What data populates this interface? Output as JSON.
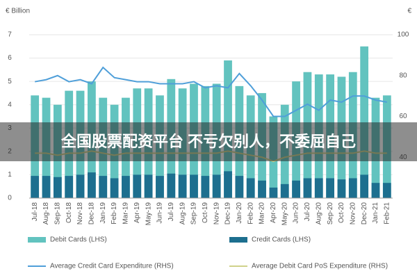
{
  "chart_data": {
    "type": "bar_line",
    "y_label": "€ Billion",
    "y2_label": "€",
    "banner": "全国股票配资平台 不亏欠别人，不委屈自己",
    "categories": [
      "Jul-18",
      "Aug-18",
      "Sep-18",
      "Oct-18",
      "Nov-18",
      "Dec-18",
      "Jan-19",
      "Feb-19",
      "Mar-19",
      "Apr-19",
      "May-19",
      "Jun-19",
      "Jul-19",
      "Aug-19",
      "Sep-19",
      "Oct-19",
      "Nov-19",
      "Dec-19",
      "Jan-20",
      "Feb-20",
      "Mar-20",
      "Apr-20",
      "May-20",
      "Jun-20",
      "Jul-20",
      "Aug-20",
      "Sep-20",
      "Oct-20",
      "Nov-20",
      "Dec-20",
      "Jan-21",
      "Feb-21"
    ],
    "series": [
      {
        "name": "Debit Cards (LHS)",
        "kind": "bar",
        "color": "#62c3bf",
        "values": [
          4.4,
          4.3,
          4.0,
          4.6,
          4.6,
          5.0,
          4.3,
          4.0,
          4.3,
          4.7,
          4.7,
          4.4,
          5.1,
          4.7,
          4.9,
          4.8,
          4.9,
          5.9,
          4.8,
          4.4,
          4.5,
          3.5,
          4.0,
          5.0,
          5.4,
          5.3,
          5.3,
          5.2,
          5.4,
          6.5,
          4.3,
          4.4
        ]
      },
      {
        "name": "Credit Cards (LHS)",
        "kind": "bar",
        "color": "#1d6f8f",
        "values": [
          0.95,
          0.95,
          0.9,
          0.95,
          1.0,
          1.1,
          0.95,
          0.85,
          0.95,
          1.0,
          1.0,
          0.95,
          1.05,
          1.0,
          1.0,
          0.95,
          1.0,
          1.15,
          0.95,
          0.85,
          0.75,
          0.45,
          0.6,
          0.75,
          0.85,
          0.85,
          0.85,
          0.8,
          0.85,
          1.0,
          0.65,
          0.65
        ]
      },
      {
        "name": "Average Credit Card Expenditure (RHS)",
        "kind": "line",
        "axis": "y2",
        "color": "#4f9fd9",
        "values": [
          77,
          78,
          80,
          77,
          78,
          76,
          84,
          79,
          78,
          77,
          77,
          76,
          76,
          76,
          77,
          74,
          75,
          74,
          81,
          75,
          68,
          60,
          60,
          63,
          66,
          63,
          68,
          67,
          70,
          70,
          68,
          67
        ]
      },
      {
        "name": "Average Debit Card PoS Expenditure (RHS)",
        "kind": "line",
        "axis": "y2",
        "color": "#cfd28a",
        "values": [
          42,
          42,
          41,
          42,
          42,
          43,
          42,
          41,
          42,
          42,
          42,
          42,
          42,
          42,
          42,
          42,
          42,
          43,
          42,
          41,
          40,
          38,
          40,
          41,
          42,
          42,
          42,
          42,
          42,
          43,
          42,
          42
        ]
      }
    ],
    "ylim": [
      0,
      7
    ],
    "yticks": [
      0,
      1,
      2,
      3,
      4,
      5,
      6,
      7
    ],
    "y2lim": [
      20,
      100
    ],
    "y2ticks": [
      40,
      60,
      80,
      100
    ],
    "grid": true,
    "legend": "bottom"
  }
}
